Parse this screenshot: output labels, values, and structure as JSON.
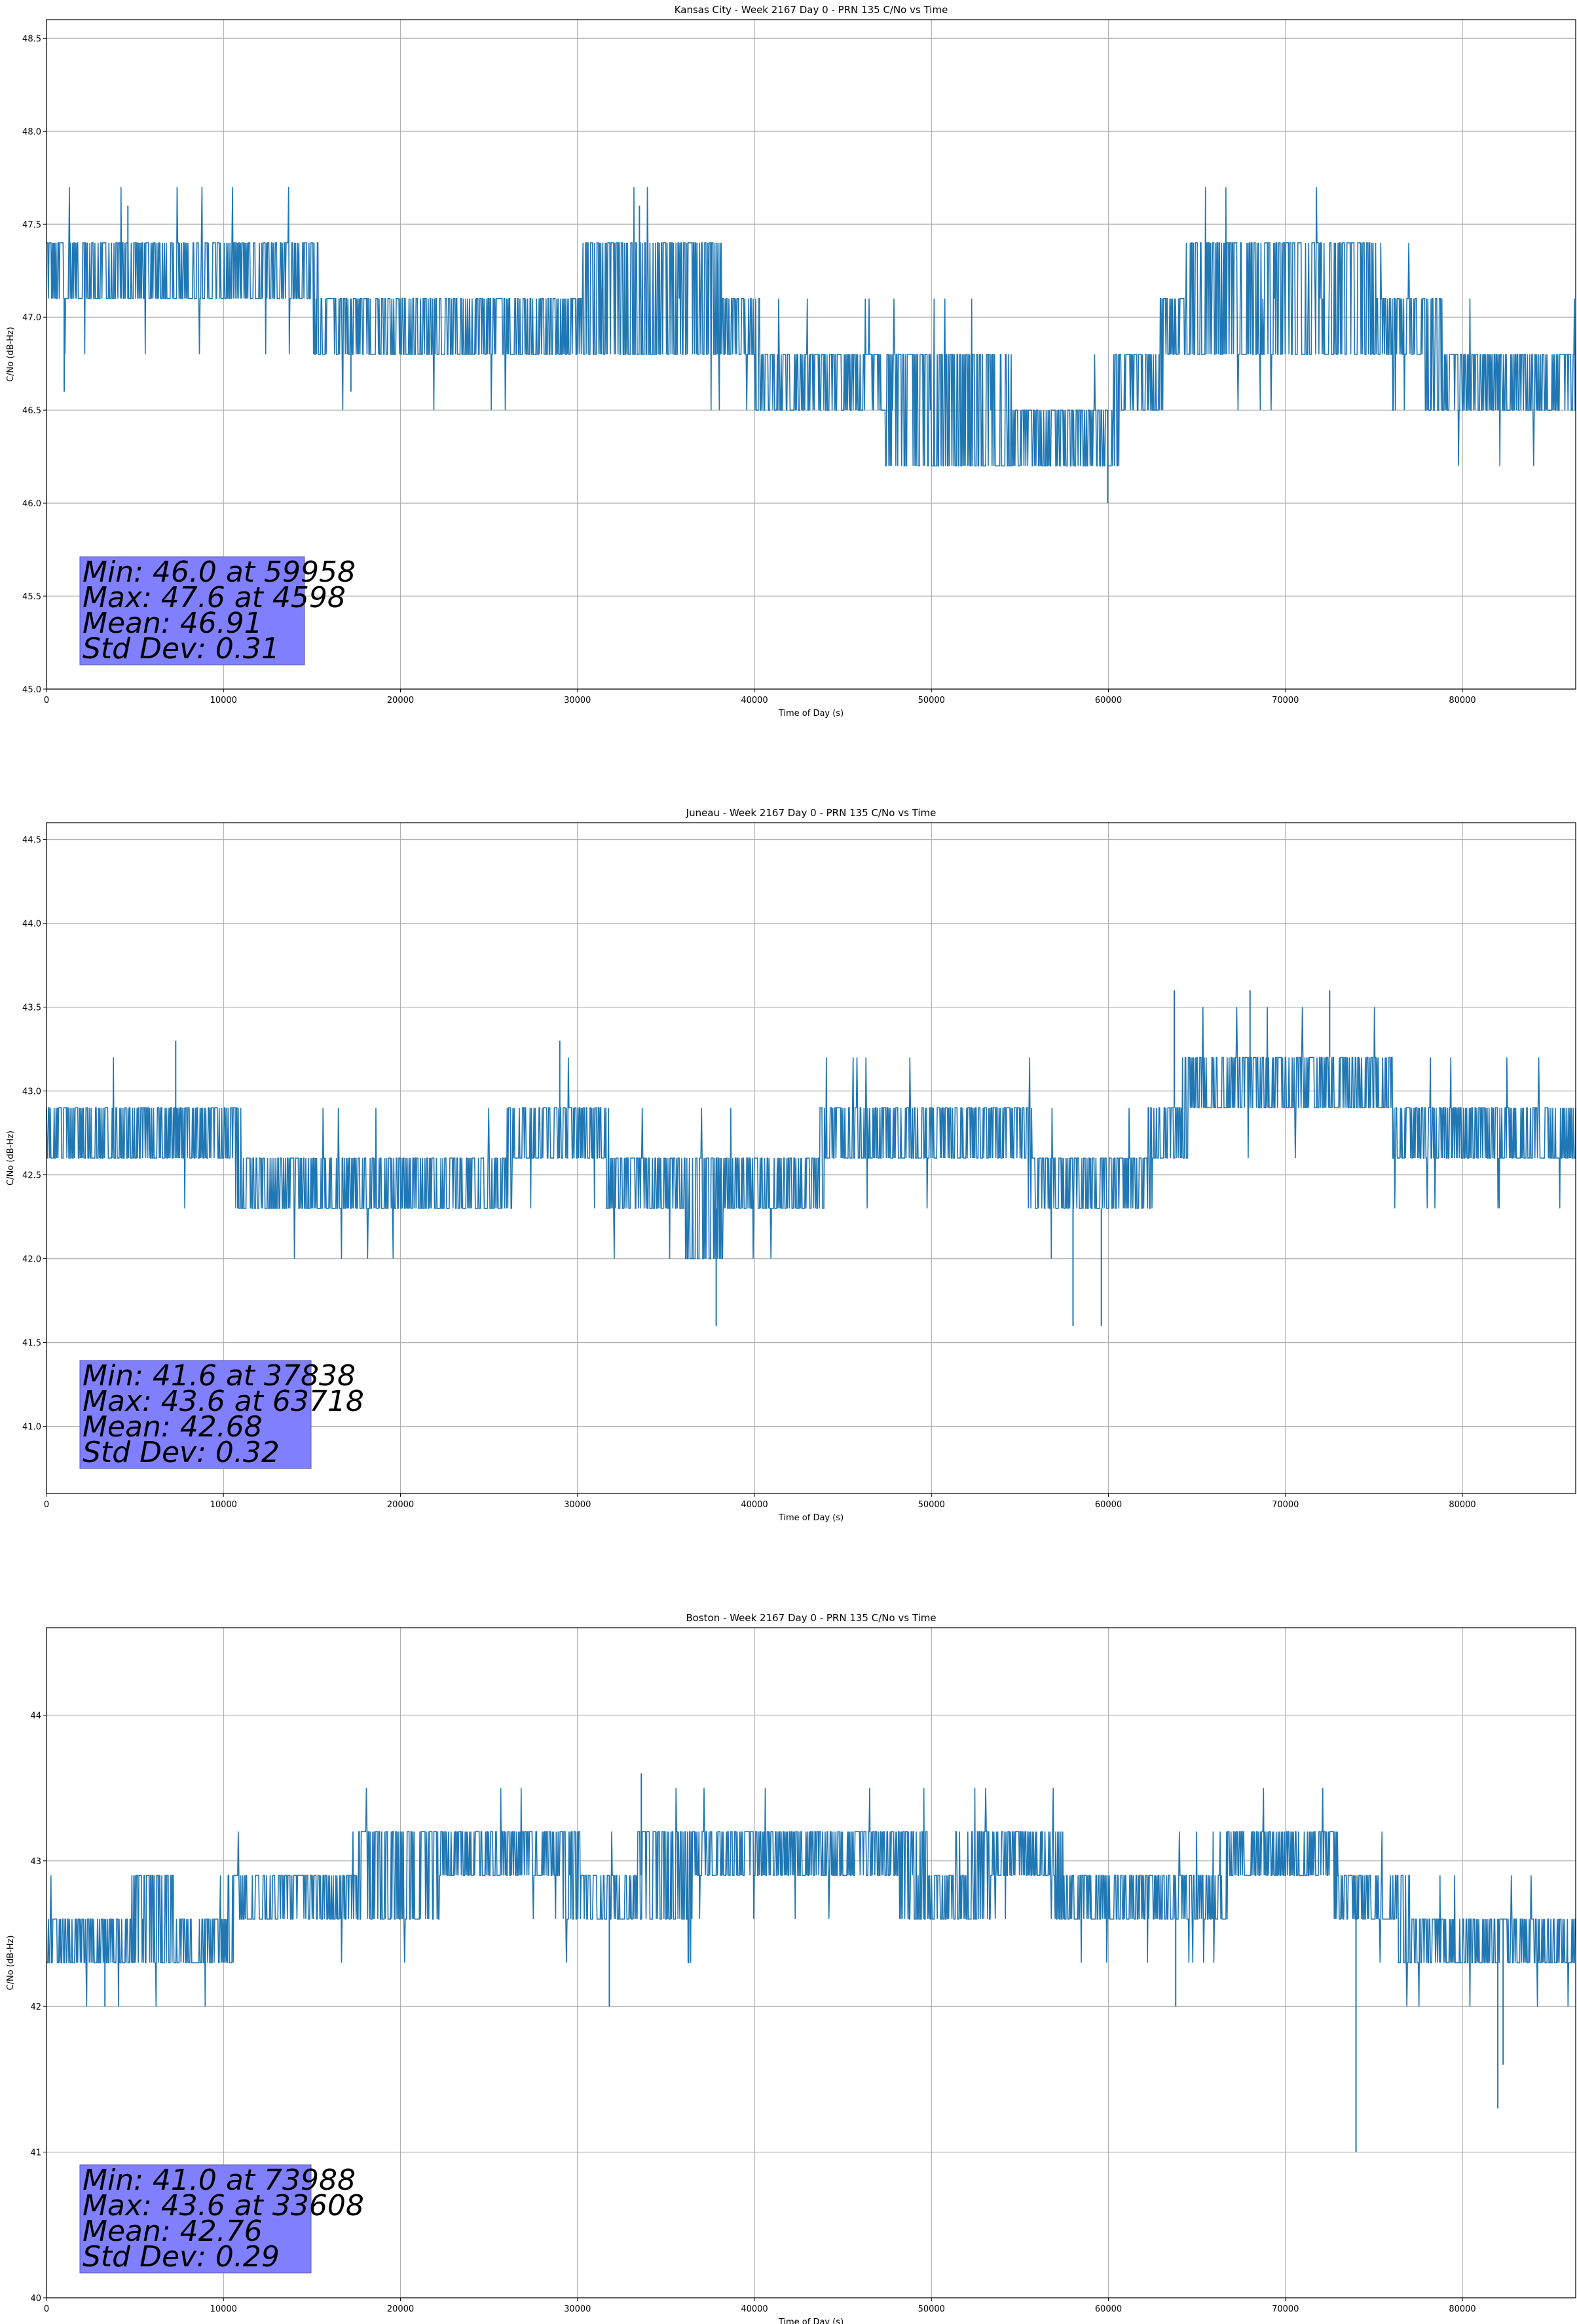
{
  "chart_data": [
    {
      "type": "line",
      "title": "Kansas City - Week 2167 Day 0 - PRN 135 C/No vs Time",
      "xlabel": "Time of Day (s)",
      "ylabel": "C/No (dB-Hz)",
      "xlim": [
        0,
        86400
      ],
      "ylim": [
        45.0,
        48.6
      ],
      "xticks": [
        0,
        10000,
        20000,
        30000,
        40000,
        50000,
        60000,
        70000,
        80000
      ],
      "yticks": [
        45.0,
        45.5,
        46.0,
        46.5,
        47.0,
        47.5,
        48.0,
        48.5
      ],
      "ytick_labels": [
        "45.0",
        "45.5",
        "46.0",
        "46.5",
        "47.0",
        "47.5",
        "48.0",
        "48.5"
      ],
      "grid": true,
      "line_color": "#1f77b4",
      "quantum": 0.3,
      "trend": [
        [
          0,
          47.15
        ],
        [
          4000,
          47.22
        ],
        [
          8000,
          47.35
        ],
        [
          14000,
          47.2
        ],
        [
          18000,
          46.85
        ],
        [
          22000,
          46.82
        ],
        [
          28000,
          46.9
        ],
        [
          30500,
          47.1
        ],
        [
          38000,
          47.1
        ],
        [
          40500,
          46.75
        ],
        [
          42000,
          46.55
        ],
        [
          60000,
          46.45
        ],
        [
          62500,
          46.7
        ],
        [
          64500,
          47.1
        ],
        [
          75000,
          47.1
        ],
        [
          77000,
          46.85
        ],
        [
          81000,
          46.7
        ],
        [
          86400,
          46.78
        ]
      ],
      "spikes": [
        [
          4598,
          47.6
        ],
        [
          33500,
          47.6
        ],
        [
          59958,
          46.0
        ],
        [
          1000,
          46.6
        ],
        [
          17200,
          46.6
        ]
      ],
      "stats": [
        "Min: 46.0 at 59958",
        "Max: 47.6 at 4598",
        "Mean: 46.91",
        "Std Dev: 0.31"
      ],
      "stats_box_color": "#8080ff"
    },
    {
      "type": "line",
      "title": "Juneau - Week 2167 Day 0 - PRN 135 C/No vs Time",
      "xlabel": "Time of Day (s)",
      "ylabel": "C/No (dB-Hz)",
      "xlim": [
        0,
        86400
      ],
      "ylim": [
        40.6,
        44.6
      ],
      "xticks": [
        0,
        10000,
        20000,
        30000,
        40000,
        50000,
        60000,
        70000,
        80000
      ],
      "yticks": [
        41.0,
        41.5,
        42.0,
        42.5,
        43.0,
        43.5,
        44.0,
        44.5
      ],
      "ytick_labels": [
        "41.0",
        "41.5",
        "42.0",
        "42.5",
        "43.0",
        "43.5",
        "44.0",
        "44.5"
      ],
      "grid": true,
      "line_color": "#1f77b4",
      "quantum": 0.3,
      "trend": [
        [
          0,
          42.65
        ],
        [
          9000,
          42.75
        ],
        [
          12000,
          42.5
        ],
        [
          25000,
          42.45
        ],
        [
          27500,
          42.78
        ],
        [
          31000,
          42.78
        ],
        [
          32500,
          42.4
        ],
        [
          37000,
          42.3
        ],
        [
          40000,
          42.35
        ],
        [
          43500,
          42.55
        ],
        [
          45000,
          42.8
        ],
        [
          55000,
          42.8
        ],
        [
          56000,
          42.4
        ],
        [
          61500,
          42.45
        ],
        [
          63500,
          42.8
        ],
        [
          66000,
          43.1
        ],
        [
          75500,
          43.1
        ],
        [
          76500,
          42.75
        ],
        [
          86400,
          42.7
        ]
      ],
      "spikes": [
        [
          37838,
          41.6
        ],
        [
          58000,
          41.6
        ],
        [
          59600,
          41.6
        ],
        [
          63718,
          43.6
        ],
        [
          68000,
          43.6
        ],
        [
          72500,
          43.6
        ],
        [
          7300,
          43.3
        ],
        [
          29000,
          43.3
        ]
      ],
      "stats": [
        "Min: 41.6 at 37838",
        "Max: 43.6 at 63718",
        "Mean: 42.68",
        "Std Dev: 0.32"
      ],
      "stats_box_color": "#8080ff"
    },
    {
      "type": "line",
      "title": "Boston - Week 2167 Day 0 - PRN 135 C/No vs Time",
      "xlabel": "Time of Day (s)",
      "ylabel": "C/No (dB-Hz)",
      "xlim": [
        0,
        86400
      ],
      "ylim": [
        40.0,
        44.6
      ],
      "xticks": [
        0,
        10000,
        20000,
        30000,
        40000,
        50000,
        60000,
        70000,
        80000
      ],
      "yticks": [
        40,
        41,
        42,
        43,
        44
      ],
      "ytick_labels": [
        "40",
        "41",
        "42",
        "43",
        "44"
      ],
      "grid": true,
      "line_color": "#1f77b4",
      "quantum": 0.3,
      "trend": [
        [
          0,
          42.45
        ],
        [
          5500,
          42.6
        ],
        [
          10000,
          42.55
        ],
        [
          12500,
          42.85
        ],
        [
          21000,
          42.9
        ],
        [
          27000,
          43.0
        ],
        [
          31000,
          42.85
        ],
        [
          39000,
          42.95
        ],
        [
          47000,
          42.95
        ],
        [
          51000,
          42.85
        ],
        [
          56000,
          43.0
        ],
        [
          59000,
          42.75
        ],
        [
          66000,
          42.7
        ],
        [
          67000,
          43.0
        ],
        [
          72000,
          43.0
        ],
        [
          74000,
          42.75
        ],
        [
          78500,
          42.5
        ],
        [
          86400,
          42.4
        ]
      ],
      "spikes": [
        [
          33608,
          43.6
        ],
        [
          73988,
          41.0
        ],
        [
          82000,
          41.3
        ],
        [
          82300,
          41.6
        ],
        [
          3300,
          42.0
        ],
        [
          31800,
          42.0
        ],
        [
          63800,
          42.0
        ]
      ],
      "stats": [
        "Min: 41.0 at 73988",
        "Max: 43.6 at 33608",
        "Mean: 42.76",
        "Std Dev: 0.29"
      ],
      "stats_box_color": "#8080ff"
    }
  ]
}
